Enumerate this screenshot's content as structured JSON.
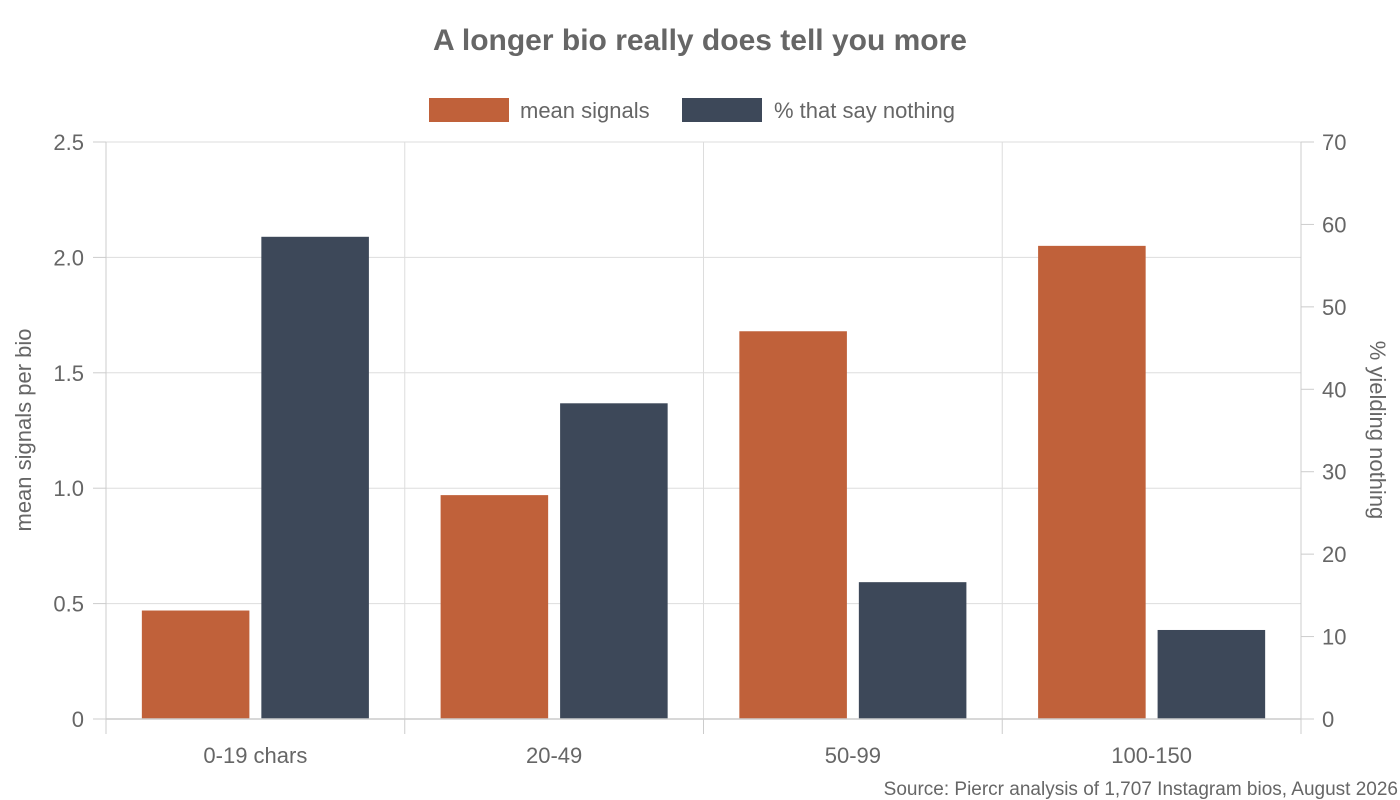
{
  "chart_data": {
    "type": "bar",
    "title": "A longer bio really does tell you more",
    "categories": [
      "0-19 chars",
      "20-49",
      "50-99",
      "100-150"
    ],
    "series": [
      {
        "name": "mean signals",
        "axis": "left",
        "color": "#c0613a",
        "values": [
          0.47,
          0.97,
          1.68,
          2.05
        ]
      },
      {
        "name": "% that say nothing",
        "axis": "right",
        "color": "#3d4859",
        "values": [
          58.5,
          38.3,
          16.6,
          10.8
        ]
      }
    ],
    "ylabel": "mean signals per bio",
    "ylim": [
      0,
      2.5
    ],
    "yticks": [
      "0",
      "0.5",
      "1.0",
      "1.5",
      "2.0",
      "2.5"
    ],
    "ylabel_right": "% yielding nothing",
    "ylim_right": [
      0,
      70
    ],
    "yticks_right": [
      "0",
      "10",
      "20",
      "30",
      "40",
      "50",
      "60",
      "70"
    ],
    "legend_position": "top-center",
    "grid": true,
    "source": "Source: Piercr analysis of 1,707 Instagram bios, August 2026"
  }
}
